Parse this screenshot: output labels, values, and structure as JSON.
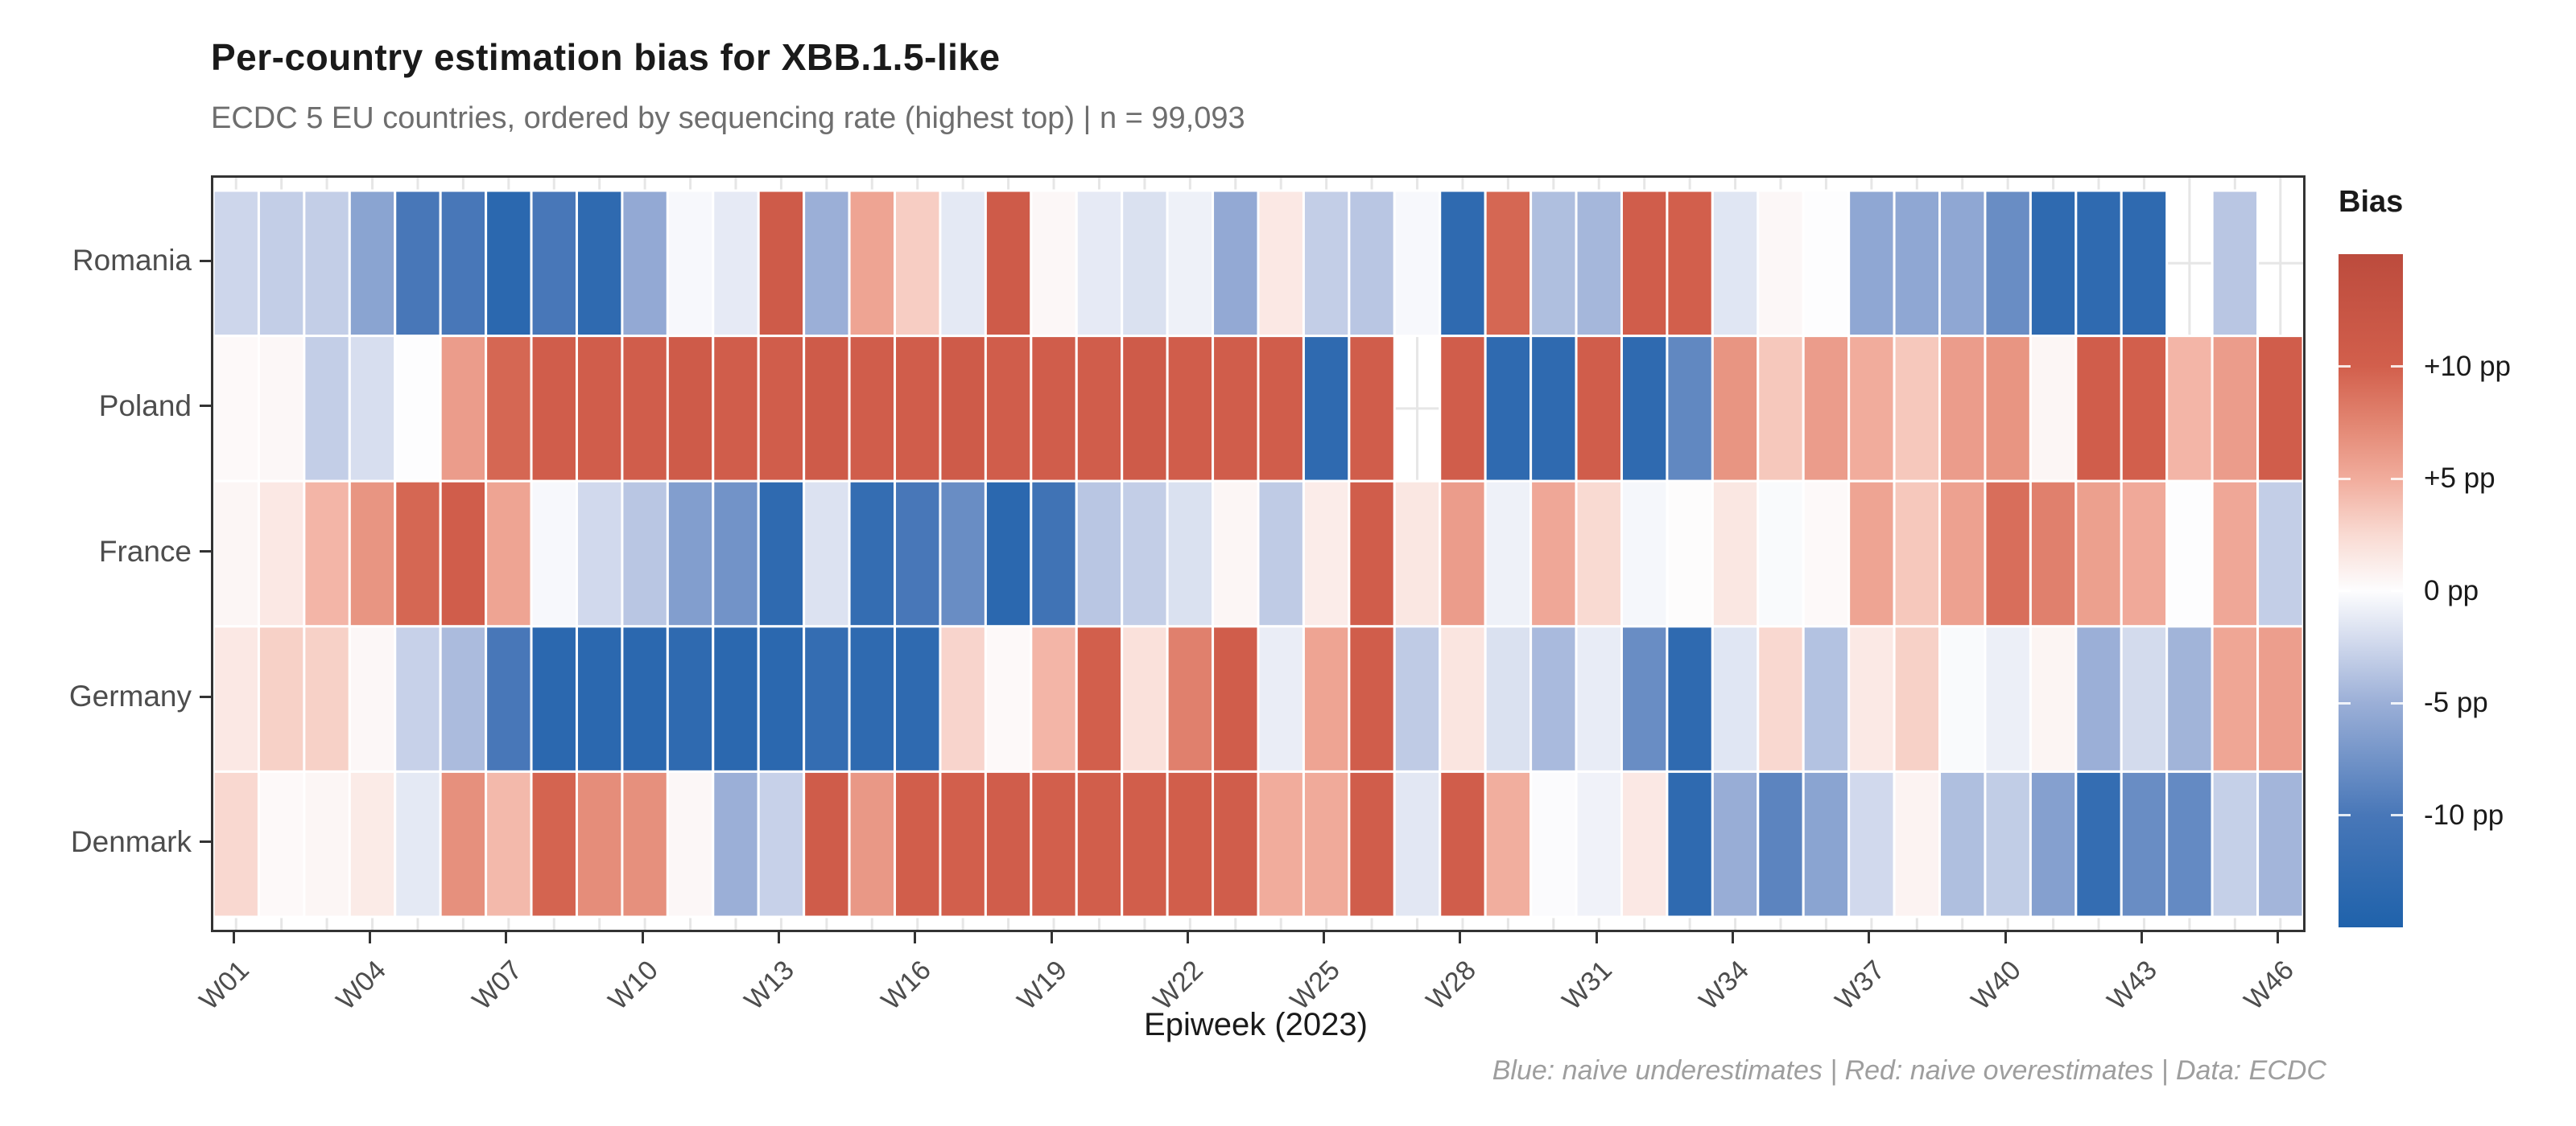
{
  "title": "Per-country estimation bias for XBB.1.5-like",
  "subtitle": "ECDC 5 EU countries, ordered by sequencing rate (highest top) | n = 99,093",
  "caption": "Blue: naive underestimates | Red: naive overestimates | Data: ECDC",
  "axis": {
    "x_title": "Epiweek (2023)",
    "x_tick_weeks": [
      1,
      4,
      7,
      10,
      13,
      16,
      19,
      22,
      25,
      28,
      31,
      34,
      37,
      40,
      43,
      46
    ],
    "x_tick_labels": [
      "W01",
      "W04",
      "W07",
      "W10",
      "W13",
      "W16",
      "W19",
      "W22",
      "W25",
      "W28",
      "W31",
      "W34",
      "W37",
      "W40",
      "W43",
      "W46"
    ],
    "y_labels": [
      "Romania",
      "Poland",
      "France",
      "Germany",
      "Denmark"
    ]
  },
  "legend": {
    "title": "Bias",
    "tick_values": [
      10,
      5,
      0,
      -5,
      -10
    ],
    "tick_labels": [
      "+10 pp",
      "+5 pp",
      "0 pp",
      "-5 pp",
      "-10 pp"
    ]
  },
  "colors": {
    "panel_border": "#333333",
    "gridline": "#e6e6e6",
    "tick_mark": "#333333",
    "axis_text": "#4d4d4d",
    "title_text": "#1a1a1a",
    "subtitle_text": "#6e6e6e",
    "caption_text": "#9e9e9e",
    "tile_stroke": "#ffffff"
  },
  "chart_data": {
    "type": "heatmap",
    "title": "Per-country estimation bias for XBB.1.5-like",
    "xlabel": "Epiweek (2023)",
    "value_unit": "pp",
    "legend_position": "right",
    "grid": true,
    "x": [
      "W01",
      "W02",
      "W03",
      "W04",
      "W05",
      "W06",
      "W07",
      "W08",
      "W09",
      "W10",
      "W11",
      "W12",
      "W13",
      "W14",
      "W15",
      "W16",
      "W17",
      "W18",
      "W19",
      "W20",
      "W21",
      "W22",
      "W23",
      "W24",
      "W25",
      "W26",
      "W27",
      "W28",
      "W29",
      "W30",
      "W31",
      "W32",
      "W33",
      "W34",
      "W35",
      "W36",
      "W37",
      "W38",
      "W39",
      "W40",
      "W41",
      "W42",
      "W43",
      "W44",
      "W45",
      "W46"
    ],
    "color_scale": {
      "limits": [
        -15,
        15
      ],
      "stops": [
        [
          -15,
          "#1F62AB"
        ],
        [
          -10,
          "#4877B8"
        ],
        [
          -5,
          "#9BAFD7"
        ],
        [
          -2.5,
          "#CDD6EB"
        ],
        [
          0,
          "#FDFDFE"
        ],
        [
          2.5,
          "#F9DAD2"
        ],
        [
          5,
          "#F1AC9C"
        ],
        [
          7.5,
          "#E28571"
        ],
        [
          10,
          "#D25F4C"
        ],
        [
          15,
          "#BC4B3D"
        ]
      ]
    },
    "series": [
      {
        "name": "Romania",
        "values": [
          -2.5,
          -3,
          -3,
          -6,
          -10,
          -10,
          -13.5,
          -10,
          -13,
          -5.5,
          -0.3,
          -1.2,
          11,
          -5,
          5.5,
          3.2,
          -1.3,
          11,
          0.4,
          -1.2,
          -1.8,
          -0.8,
          -5.5,
          1.5,
          -3,
          -3.5,
          -0.3,
          -13,
          9.5,
          -4,
          -4.5,
          10.5,
          10,
          -1.5,
          0.4,
          0,
          -5.7,
          -5.7,
          -5.7,
          -8,
          -13,
          -13,
          -13,
          null,
          -3.5,
          null
        ]
      },
      {
        "name": "Poland",
        "values": [
          0.3,
          0.4,
          -3,
          -2,
          0,
          6,
          9.5,
          10.5,
          10.5,
          10.5,
          11,
          10.5,
          10.5,
          11,
          10.5,
          10.5,
          11,
          10.5,
          10.5,
          10.5,
          11,
          10.5,
          10.5,
          10.5,
          -13,
          10.5,
          null,
          10.5,
          -13,
          -13,
          10.5,
          -13,
          -8.5,
          6.5,
          3.5,
          6,
          5,
          3.5,
          6,
          6.5,
          0.5,
          10.5,
          10,
          4.5,
          6,
          10.5
        ]
      },
      {
        "name": "France",
        "values": [
          0.5,
          1.5,
          4.5,
          6.5,
          9.5,
          10.5,
          5.5,
          -0.3,
          -2.3,
          -3.5,
          -6.5,
          -7.5,
          -13,
          -1.7,
          -12.5,
          -10,
          -8,
          -13.5,
          -11,
          -3.5,
          -3,
          -1.8,
          0.5,
          -3.2,
          1.2,
          10.5,
          1.6,
          6,
          -0.8,
          5.3,
          2.5,
          -0.4,
          0.1,
          1.6,
          -0.2,
          0.3,
          5.5,
          3.5,
          5.7,
          9,
          7.8,
          5.8,
          5.2,
          0,
          5.3,
          -3
        ]
      },
      {
        "name": "Germany",
        "values": [
          1.5,
          3,
          3,
          0.4,
          -2.8,
          -4.2,
          -10,
          -13.5,
          -13.5,
          -13.5,
          -13,
          -13.5,
          -13.5,
          -12.5,
          -13,
          -13,
          2.8,
          0.3,
          4.5,
          10,
          2,
          7.8,
          10.5,
          -1,
          5.5,
          10.5,
          -3.2,
          1.7,
          -1.8,
          -4.3,
          -1.1,
          -8,
          -13,
          -1.5,
          2.6,
          -3.8,
          1.4,
          3,
          -0.2,
          -0.9,
          0.6,
          -5,
          -2.2,
          -4.7,
          5.4,
          5.9
        ]
      },
      {
        "name": "Denmark",
        "values": [
          2.6,
          0.3,
          0.5,
          1.3,
          -1.3,
          6.8,
          4.3,
          9.7,
          7,
          6.8,
          0.4,
          -5,
          -2.8,
          10.7,
          6.3,
          10.2,
          10,
          10.4,
          10.1,
          10.2,
          10.3,
          10.2,
          10.5,
          5,
          5.1,
          10.5,
          -1.4,
          10.4,
          4.9,
          -0.1,
          -0.7,
          1.5,
          -13,
          -5.2,
          -8.8,
          -6,
          -2.3,
          0.7,
          -4,
          -3.1,
          -6.3,
          -12.5,
          -8,
          -8.3,
          -2.9,
          -4.6
        ]
      }
    ]
  }
}
